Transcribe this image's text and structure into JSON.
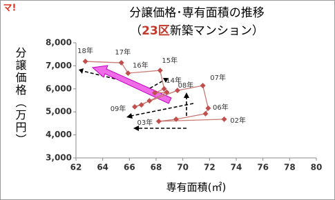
{
  "logo": "マ!",
  "chart_data": {
    "type": "scatter",
    "title": "分譲価格･専有面積の推移",
    "subtitle": [
      "（",
      "23区",
      "新築マンション）"
    ],
    "x_label": "専有面積(㎡)",
    "y_label": "分譲価格（万円）",
    "x": [
      73.1,
      68.2,
      69.5,
      71.7,
      71.9,
      71.5,
      69.6,
      66.4,
      66.9,
      67.5,
      68.8,
      67.9,
      68.6,
      68.3,
      65.9,
      65.4,
      62.7
    ],
    "values": [
      4680,
      4590,
      4680,
      4920,
      5160,
      6140,
      5930,
      5220,
      5300,
      5480,
      5850,
      5820,
      6000,
      6800,
      6680,
      7130,
      7190
    ],
    "point_labels": [
      "02年",
      "03年",
      null,
      null,
      "06年",
      "07年",
      "08年",
      "09年",
      null,
      null,
      null,
      null,
      "14年",
      "15年",
      "16年",
      "17年",
      "18年"
    ],
    "color": "#c0504d",
    "line_color": "#c87a74",
    "xlim": [
      62,
      80
    ],
    "xticks": [
      62,
      64,
      66,
      68,
      70,
      72,
      74,
      76,
      78,
      80
    ],
    "ylim": [
      3000,
      8000
    ],
    "yticks": [
      {
        "value": 3000,
        "label": "3,000"
      },
      {
        "value": 4000,
        "label": "4,000"
      },
      {
        "value": 5000,
        "label": "5,000"
      },
      {
        "value": 6000,
        "label": "6,000"
      },
      {
        "value": 7000,
        "label": "7,000"
      },
      {
        "value": 8000,
        "label": "8,000"
      }
    ],
    "grid": false
  }
}
